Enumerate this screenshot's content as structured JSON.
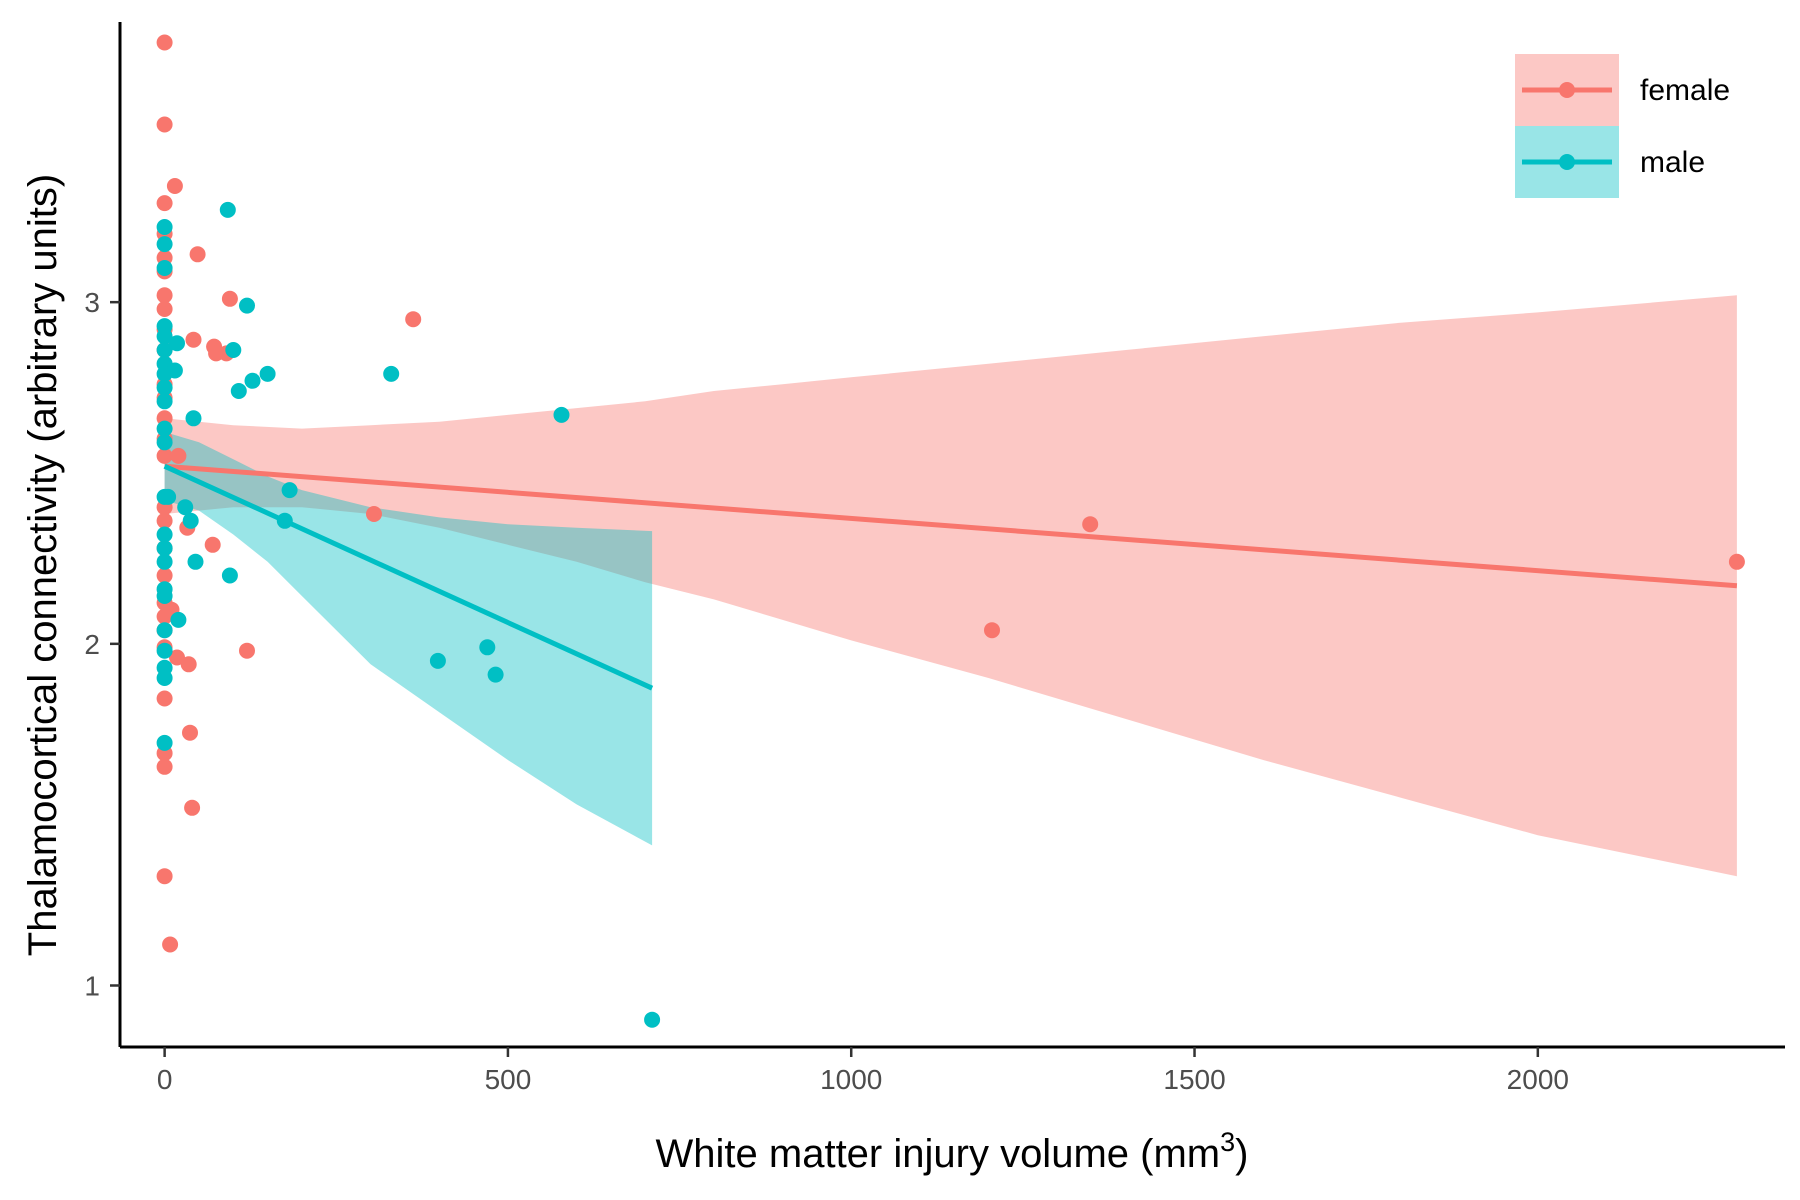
{
  "chart_data": {
    "type": "scatter",
    "xlabel": "White matter injury volume (mm",
    "xlabel_sup": "3",
    "xlabel_end": ")",
    "ylabel": "Thalamocortical connectivity (arbitrary units)",
    "xlim": [
      -65,
      2360
    ],
    "ylim": [
      0.82,
      3.82
    ],
    "x_ticks": [
      0,
      500,
      1000,
      1500,
      2000
    ],
    "x_tick_labels": [
      "0",
      "500",
      "1000",
      "1500",
      "2000"
    ],
    "y_ticks": [
      1,
      2,
      3
    ],
    "y_tick_labels": [
      "1",
      "2",
      "3"
    ],
    "grid": false,
    "legend_position": "top-right",
    "colors": {
      "female": "#F8766D",
      "male": "#00BFC4"
    },
    "series": [
      {
        "name": "female",
        "color": "#F8766D",
        "band_color": "#F8766D",
        "fit": {
          "x": [
            0,
            2290
          ],
          "y": [
            2.52,
            2.17
          ]
        },
        "band": [
          {
            "x": 0,
            "lo": 2.38,
            "hi": 2.66
          },
          {
            "x": 100,
            "lo": 2.4,
            "hi": 2.64
          },
          {
            "x": 200,
            "lo": 2.4,
            "hi": 2.63
          },
          {
            "x": 300,
            "lo": 2.38,
            "hi": 2.64
          },
          {
            "x": 400,
            "lo": 2.34,
            "hi": 2.65
          },
          {
            "x": 500,
            "lo": 2.29,
            "hi": 2.67
          },
          {
            "x": 600,
            "lo": 2.24,
            "hi": 2.69
          },
          {
            "x": 700,
            "lo": 2.18,
            "hi": 2.71
          },
          {
            "x": 800,
            "lo": 2.13,
            "hi": 2.74
          },
          {
            "x": 900,
            "lo": 2.07,
            "hi": 2.76
          },
          {
            "x": 1000,
            "lo": 2.01,
            "hi": 2.78
          },
          {
            "x": 1200,
            "lo": 1.9,
            "hi": 2.82
          },
          {
            "x": 1400,
            "lo": 1.78,
            "hi": 2.86
          },
          {
            "x": 1600,
            "lo": 1.66,
            "hi": 2.9
          },
          {
            "x": 1800,
            "lo": 1.55,
            "hi": 2.94
          },
          {
            "x": 2000,
            "lo": 1.44,
            "hi": 2.97
          },
          {
            "x": 2290,
            "lo": 1.32,
            "hi": 3.02
          }
        ],
        "points": [
          [
            0,
            3.76
          ],
          [
            0,
            3.52
          ],
          [
            0,
            3.29
          ],
          [
            0,
            3.2
          ],
          [
            0,
            3.13
          ],
          [
            0,
            3.09
          ],
          [
            0,
            3.02
          ],
          [
            0,
            2.98
          ],
          [
            0,
            2.92
          ],
          [
            0,
            2.86
          ],
          [
            0,
            2.76
          ],
          [
            0,
            2.72
          ],
          [
            0,
            2.66
          ],
          [
            0,
            2.6
          ],
          [
            0,
            2.55
          ],
          [
            0,
            2.4
          ],
          [
            0,
            2.36
          ],
          [
            0,
            2.28
          ],
          [
            0,
            2.2
          ],
          [
            0,
            2.12
          ],
          [
            0,
            2.08
          ],
          [
            0,
            2.04
          ],
          [
            0,
            1.99
          ],
          [
            0,
            1.84
          ],
          [
            0,
            1.68
          ],
          [
            0,
            1.64
          ],
          [
            0,
            1.32
          ],
          [
            8,
            1.12
          ],
          [
            10,
            2.1
          ],
          [
            15,
            3.34
          ],
          [
            18,
            1.96
          ],
          [
            20,
            2.55
          ],
          [
            33,
            2.34
          ],
          [
            35,
            1.94
          ],
          [
            37,
            1.74
          ],
          [
            40,
            1.52
          ],
          [
            42,
            2.89
          ],
          [
            48,
            3.14
          ],
          [
            70,
            2.29
          ],
          [
            72,
            2.87
          ],
          [
            75,
            2.85
          ],
          [
            90,
            2.85
          ],
          [
            95,
            3.01
          ],
          [
            120,
            1.98
          ],
          [
            305,
            2.38
          ],
          [
            362,
            2.95
          ],
          [
            1205,
            2.04
          ],
          [
            1348,
            2.35
          ],
          [
            2290,
            2.24
          ]
        ]
      },
      {
        "name": "male",
        "color": "#00BFC4",
        "band_color": "#00BFC4",
        "fit": {
          "x": [
            0,
            710
          ],
          "y": [
            2.52,
            1.87
          ]
        },
        "band": [
          {
            "x": 0,
            "lo": 2.42,
            "hi": 2.62
          },
          {
            "x": 50,
            "lo": 2.39,
            "hi": 2.59
          },
          {
            "x": 100,
            "lo": 2.32,
            "hi": 2.54
          },
          {
            "x": 150,
            "lo": 2.24,
            "hi": 2.49
          },
          {
            "x": 200,
            "lo": 2.14,
            "hi": 2.45
          },
          {
            "x": 300,
            "lo": 1.94,
            "hi": 2.4
          },
          {
            "x": 400,
            "lo": 1.8,
            "hi": 2.37
          },
          {
            "x": 500,
            "lo": 1.66,
            "hi": 2.35
          },
          {
            "x": 600,
            "lo": 1.53,
            "hi": 2.34
          },
          {
            "x": 710,
            "lo": 1.41,
            "hi": 2.33
          }
        ],
        "points": [
          [
            0,
            3.22
          ],
          [
            0,
            3.17
          ],
          [
            0,
            3.1
          ],
          [
            0,
            2.93
          ],
          [
            0,
            2.9
          ],
          [
            0,
            2.86
          ],
          [
            0,
            2.82
          ],
          [
            0,
            2.79
          ],
          [
            0,
            2.75
          ],
          [
            0,
            2.71
          ],
          [
            0,
            2.63
          ],
          [
            0,
            2.59
          ],
          [
            0,
            2.43
          ],
          [
            0,
            2.32
          ],
          [
            0,
            2.28
          ],
          [
            0,
            2.24
          ],
          [
            0,
            2.16
          ],
          [
            0,
            2.14
          ],
          [
            0,
            2.04
          ],
          [
            0,
            1.98
          ],
          [
            0,
            1.93
          ],
          [
            0,
            1.9
          ],
          [
            0,
            1.71
          ],
          [
            5,
            2.43
          ],
          [
            15,
            2.8
          ],
          [
            18,
            2.88
          ],
          [
            20,
            2.07
          ],
          [
            30,
            2.4
          ],
          [
            38,
            2.36
          ],
          [
            42,
            2.66
          ],
          [
            45,
            2.24
          ],
          [
            92,
            3.27
          ],
          [
            95,
            2.2
          ],
          [
            100,
            2.86
          ],
          [
            108,
            2.74
          ],
          [
            120,
            2.99
          ],
          [
            128,
            2.77
          ],
          [
            150,
            2.79
          ],
          [
            175,
            2.36
          ],
          [
            182,
            2.45
          ],
          [
            330,
            2.79
          ],
          [
            398,
            1.95
          ],
          [
            470,
            1.99
          ],
          [
            482,
            1.91
          ],
          [
            578,
            2.67
          ],
          [
            710,
            0.9
          ]
        ]
      }
    ]
  }
}
